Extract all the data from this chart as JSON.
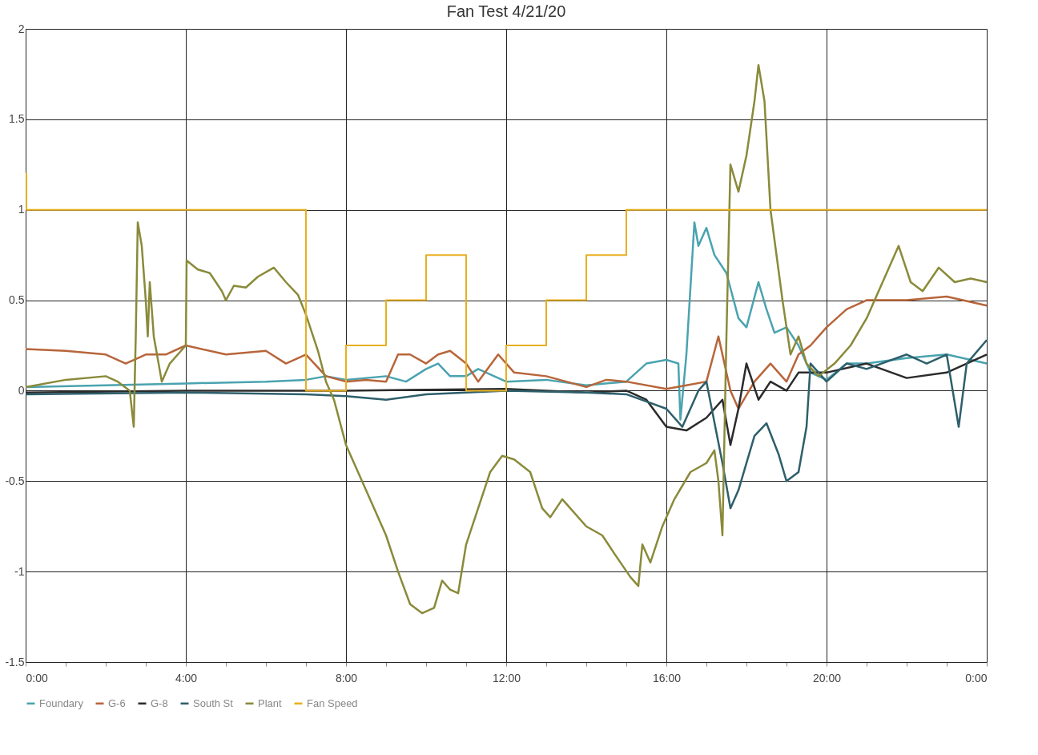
{
  "chart_data": {
    "type": "line",
    "title": "Fan Test 4/21/20",
    "xlim": [
      0,
      24
    ],
    "ylim": [
      -1.5,
      2
    ],
    "xticks": [
      {
        "value": 0,
        "label": "0:00"
      },
      {
        "value": 1,
        "label": null
      },
      {
        "value": 2,
        "label": null
      },
      {
        "value": 3,
        "label": null
      },
      {
        "value": 4,
        "label": "4:00"
      },
      {
        "value": 5,
        "label": null
      },
      {
        "value": 6,
        "label": null
      },
      {
        "value": 7,
        "label": null
      },
      {
        "value": 8,
        "label": "8:00"
      },
      {
        "value": 9,
        "label": null
      },
      {
        "value": 10,
        "label": null
      },
      {
        "value": 11,
        "label": null
      },
      {
        "value": 12,
        "label": "12:00"
      },
      {
        "value": 13,
        "label": null
      },
      {
        "value": 14,
        "label": null
      },
      {
        "value": 15,
        "label": null
      },
      {
        "value": 16,
        "label": "16:00"
      },
      {
        "value": 17,
        "label": null
      },
      {
        "value": 18,
        "label": null
      },
      {
        "value": 19,
        "label": null
      },
      {
        "value": 20,
        "label": "20:00"
      },
      {
        "value": 21,
        "label": null
      },
      {
        "value": 22,
        "label": null
      },
      {
        "value": 23,
        "label": null
      },
      {
        "value": 24,
        "label": "0:00"
      }
    ],
    "yticks": [
      -1.5,
      -1,
      -0.5,
      0,
      0.5,
      1,
      1.5,
      2
    ],
    "grid": true,
    "legend": "bottom",
    "series": [
      {
        "name": "Foundary",
        "color": "#4aa3b0",
        "x": [
          0,
          2,
          4,
          6,
          7,
          7.5,
          8,
          9,
          9.5,
          10,
          10.3,
          10.6,
          11,
          11.3,
          12,
          13,
          14,
          15,
          15.5,
          16,
          16.3,
          16.35,
          16.5,
          16.7,
          16.8,
          17,
          17.2,
          17.5,
          17.8,
          18,
          18.3,
          18.5,
          18.7,
          19,
          19.3,
          19.6,
          20,
          20.5,
          21,
          22,
          23,
          24
        ],
        "values": [
          0.02,
          0.03,
          0.04,
          0.05,
          0.06,
          0.08,
          0.06,
          0.08,
          0.05,
          0.12,
          0.15,
          0.08,
          0.08,
          0.12,
          0.05,
          0.06,
          0.03,
          0.05,
          0.15,
          0.17,
          0.15,
          -0.16,
          0.2,
          0.93,
          0.8,
          0.9,
          0.75,
          0.65,
          0.4,
          0.35,
          0.6,
          0.45,
          0.32,
          0.35,
          0.25,
          0.1,
          0.06,
          0.15,
          0.15,
          0.18,
          0.2,
          0.15
        ]
      },
      {
        "name": "G-6",
        "color": "#b8653a",
        "x": [
          0,
          1,
          2,
          2.5,
          3,
          3.5,
          4,
          5,
          6,
          6.5,
          7,
          7.5,
          8,
          8.5,
          9,
          9.3,
          9.6,
          10,
          10.3,
          10.6,
          11,
          11.3,
          11.8,
          12.2,
          13,
          13.5,
          14,
          14.5,
          15,
          16,
          16.5,
          17,
          17.3,
          17.6,
          17.8,
          18.2,
          18.6,
          19,
          19.3,
          19.6,
          20,
          20.5,
          21,
          22,
          23,
          24
        ],
        "values": [
          0.23,
          0.22,
          0.2,
          0.15,
          0.2,
          0.2,
          0.25,
          0.2,
          0.22,
          0.15,
          0.2,
          0.08,
          0.05,
          0.06,
          0.05,
          0.2,
          0.2,
          0.15,
          0.2,
          0.22,
          0.15,
          0.05,
          0.2,
          0.1,
          0.08,
          0.05,
          0.02,
          0.06,
          0.05,
          0.01,
          0.03,
          0.05,
          0.3,
          0.0,
          -0.1,
          0.05,
          0.15,
          0.05,
          0.2,
          0.25,
          0.35,
          0.45,
          0.5,
          0.5,
          0.52,
          0.47
        ]
      },
      {
        "name": "G-8",
        "color": "#2b2b2b",
        "x": [
          0,
          4,
          8,
          12,
          14,
          15,
          15.5,
          16,
          16.5,
          17,
          17.4,
          17.6,
          17.8,
          18,
          18.3,
          18.6,
          19,
          19.3,
          20,
          21,
          22,
          23,
          24
        ],
        "values": [
          -0.01,
          0.0,
          0.0,
          0.01,
          -0.01,
          0.0,
          -0.05,
          -0.2,
          -0.22,
          -0.15,
          -0.05,
          -0.3,
          -0.1,
          0.15,
          -0.05,
          0.05,
          0.0,
          0.1,
          0.1,
          0.15,
          0.07,
          0.1,
          0.2
        ]
      },
      {
        "name": "South St",
        "color": "#2e5f6b",
        "x": [
          0,
          4,
          7,
          8,
          9,
          10,
          12,
          14,
          15,
          16,
          16.4,
          16.8,
          17,
          17.4,
          17.6,
          17.8,
          18.2,
          18.5,
          18.8,
          19,
          19.3,
          19.5,
          19.6,
          19.8,
          20,
          20.5,
          21,
          22,
          22.5,
          23,
          23.3,
          23.5,
          24
        ],
        "values": [
          -0.02,
          -0.01,
          -0.02,
          -0.03,
          -0.05,
          -0.02,
          0.0,
          -0.01,
          -0.02,
          -0.1,
          -0.2,
          0.0,
          0.05,
          -0.4,
          -0.65,
          -0.55,
          -0.25,
          -0.18,
          -0.35,
          -0.5,
          -0.45,
          -0.2,
          0.15,
          0.1,
          0.05,
          0.15,
          0.12,
          0.2,
          0.15,
          0.2,
          -0.2,
          0.15,
          0.28
        ]
      },
      {
        "name": "Plant",
        "color": "#8a8a3a",
        "x": [
          0,
          1,
          2,
          2.3,
          2.6,
          2.7,
          2.75,
          2.8,
          2.9,
          3,
          3.05,
          3.1,
          3.2,
          3.4,
          3.6,
          3.8,
          4,
          4.02,
          4.3,
          4.6,
          4.9,
          5,
          5.2,
          5.5,
          5.8,
          6.2,
          6.5,
          6.8,
          7,
          7.3,
          7.5,
          7.7,
          8,
          8.5,
          9,
          9.3,
          9.6,
          9.9,
          10.2,
          10.4,
          10.6,
          10.8,
          11,
          11.3,
          11.6,
          11.9,
          12.2,
          12.6,
          12.9,
          13.1,
          13.4,
          13.6,
          14,
          14.4,
          14.7,
          15.1,
          15.3,
          15.4,
          15.6,
          15.9,
          16.2,
          16.6,
          17,
          17.2,
          17.3,
          17.4,
          17.5,
          17.6,
          17.8,
          18,
          18.2,
          18.3,
          18.45,
          18.6,
          18.9,
          19.1,
          19.3,
          19.5,
          19.8,
          20.2,
          20.6,
          21,
          21.4,
          21.8,
          22.1,
          22.4,
          22.8,
          23.2,
          23.6,
          24
        ],
        "values": [
          0.02,
          0.06,
          0.08,
          0.05,
          0.0,
          -0.2,
          0.3,
          0.93,
          0.8,
          0.5,
          0.3,
          0.6,
          0.3,
          0.05,
          0.15,
          0.2,
          0.25,
          0.72,
          0.67,
          0.65,
          0.55,
          0.5,
          0.58,
          0.57,
          0.63,
          0.68,
          0.6,
          0.53,
          0.42,
          0.22,
          0.05,
          -0.05,
          -0.3,
          -0.55,
          -0.8,
          -1.0,
          -1.18,
          -1.23,
          -1.2,
          -1.05,
          -1.1,
          -1.12,
          -0.85,
          -0.65,
          -0.45,
          -0.36,
          -0.38,
          -0.45,
          -0.65,
          -0.7,
          -0.6,
          -0.65,
          -0.75,
          -0.8,
          -0.9,
          -1.03,
          -1.08,
          -0.85,
          -0.95,
          -0.75,
          -0.6,
          -0.45,
          -0.4,
          -0.33,
          -0.5,
          -0.8,
          0.3,
          1.25,
          1.1,
          1.3,
          1.6,
          1.8,
          1.6,
          1.0,
          0.5,
          0.2,
          0.3,
          0.15,
          0.08,
          0.15,
          0.25,
          0.4,
          0.6,
          0.8,
          0.6,
          0.55,
          0.68,
          0.6,
          0.62,
          0.6
        ]
      },
      {
        "name": "Fan Speed",
        "color": "#e8b020",
        "type": "step",
        "x": [
          0,
          0.02,
          7,
          8,
          9,
          10,
          11,
          12,
          13,
          14,
          15,
          24
        ],
        "values": [
          1.2,
          1,
          0,
          0.25,
          0.5,
          0.75,
          0,
          0.25,
          0.5,
          0.75,
          1,
          1
        ]
      }
    ]
  }
}
